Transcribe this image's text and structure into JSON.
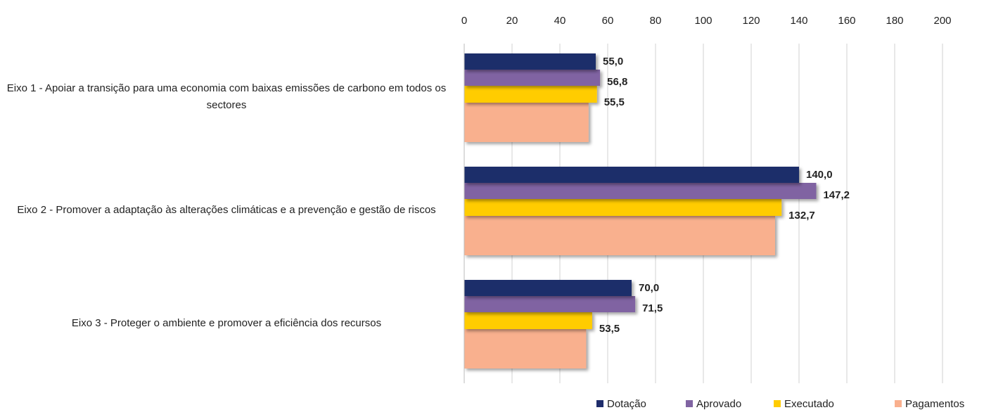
{
  "chart_data": {
    "type": "bar",
    "orientation": "horizontal",
    "categories": [
      "Eixo 1 - Apoiar a transição para uma economia com baixas emissões de carbono em todos os sectores",
      "Eixo 2 - Promover a adaptação às alterações climáticas e a prevenção e gestão de riscos",
      "Eixo 3 - Proteger o ambiente e promover a eficiência dos recursos"
    ],
    "series": [
      {
        "name": "Dotação",
        "color": "#1f2d6b",
        "values": [
          55.0,
          140.0,
          70.0
        ],
        "value_labels": [
          "55,0",
          "140,0",
          "70,0"
        ]
      },
      {
        "name": "Aprovado",
        "color": "#8064a2",
        "values": [
          56.8,
          147.2,
          71.5
        ],
        "value_labels": [
          "56,8",
          "147,2",
          "71,5"
        ]
      },
      {
        "name": "Executado",
        "color": "#ffcc00",
        "values": [
          55.5,
          132.7,
          53.5
        ],
        "value_labels": [
          "55,5",
          "132,7",
          "53,5"
        ]
      },
      {
        "name": "Pagamentos",
        "color": "#f9b08e",
        "values": [
          52,
          130,
          51
        ]
      }
    ],
    "xlim": [
      0,
      200
    ],
    "xticks": [
      0,
      20,
      40,
      60,
      80,
      100,
      120,
      140,
      160,
      180,
      200
    ],
    "grid": true,
    "legend": "bottom"
  }
}
